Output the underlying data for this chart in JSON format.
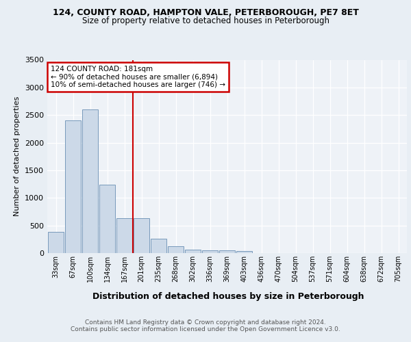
{
  "title1": "124, COUNTY ROAD, HAMPTON VALE, PETERBOROUGH, PE7 8ET",
  "title2": "Size of property relative to detached houses in Peterborough",
  "xlabel": "Distribution of detached houses by size in Peterborough",
  "ylabel": "Number of detached properties",
  "categories": [
    "33sqm",
    "67sqm",
    "100sqm",
    "134sqm",
    "167sqm",
    "201sqm",
    "235sqm",
    "268sqm",
    "302sqm",
    "336sqm",
    "369sqm",
    "403sqm",
    "436sqm",
    "470sqm",
    "504sqm",
    "537sqm",
    "571sqm",
    "604sqm",
    "638sqm",
    "672sqm",
    "705sqm"
  ],
  "values": [
    390,
    2400,
    2600,
    1240,
    630,
    630,
    260,
    120,
    65,
    50,
    50,
    40,
    0,
    0,
    0,
    0,
    0,
    0,
    0,
    0,
    0
  ],
  "bar_color": "#ccd9e8",
  "bar_edge_color": "#7799bb",
  "vline_x": 4.5,
  "vline_color": "#cc0000",
  "annotation_title": "124 COUNTY ROAD: 181sqm",
  "annotation_line1": "← 90% of detached houses are smaller (6,894)",
  "annotation_line2": "10% of semi-detached houses are larger (746) →",
  "annotation_box_color": "#cc0000",
  "ylim": [
    0,
    3500
  ],
  "yticks": [
    0,
    500,
    1000,
    1500,
    2000,
    2500,
    3000,
    3500
  ],
  "footer1": "Contains HM Land Registry data © Crown copyright and database right 2024.",
  "footer2": "Contains public sector information licensed under the Open Government Licence v3.0.",
  "bg_color": "#e8eef4",
  "plot_bg_color": "#eef2f7"
}
